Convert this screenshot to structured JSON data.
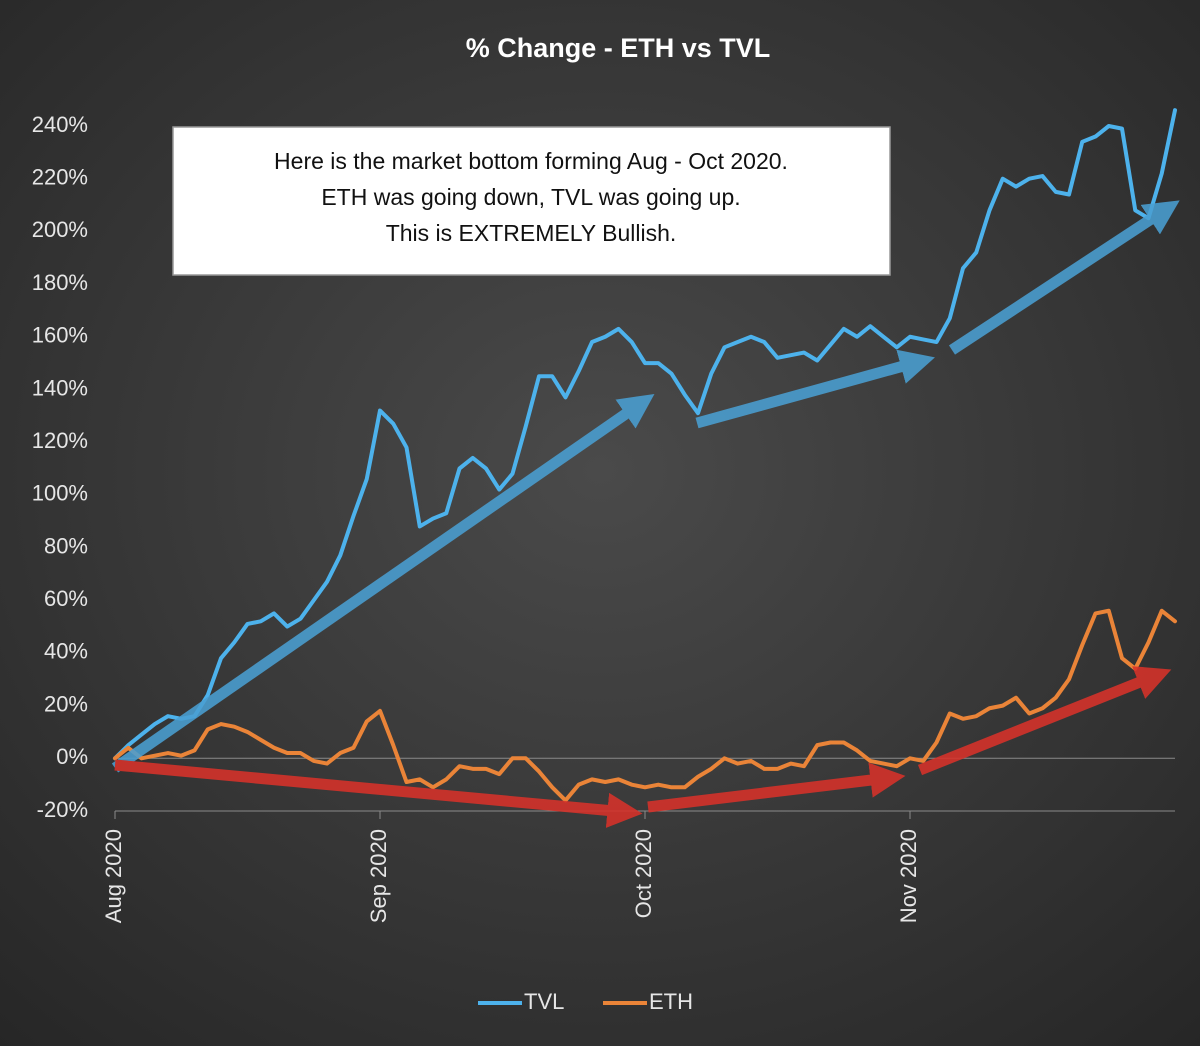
{
  "chart_data": {
    "type": "line",
    "title": "% Change - ETH vs TVL",
    "annotation": [
      "Here is the market bottom forming Aug - Oct 2020.",
      "ETH was going down, TVL was going up.",
      "This is EXTREMELY Bullish."
    ],
    "categories": [
      "Aug 2020",
      null,
      null,
      null,
      null,
      null,
      null,
      null,
      null,
      null,
      null,
      null,
      null,
      null,
      null,
      null,
      null,
      null,
      null,
      null,
      "Sep 2020",
      null,
      null,
      null,
      null,
      null,
      null,
      null,
      null,
      null,
      null,
      null,
      null,
      null,
      null,
      null,
      null,
      null,
      null,
      null,
      "Oct 2020",
      null,
      null,
      null,
      null,
      null,
      null,
      null,
      null,
      null,
      null,
      null,
      null,
      null,
      null,
      null,
      null,
      null,
      null,
      null,
      "Nov 2020",
      null,
      null,
      null,
      null,
      null,
      null,
      null,
      null,
      null,
      null,
      null,
      null,
      null,
      null,
      null,
      null,
      null,
      null,
      null,
      null
    ],
    "series": [
      {
        "name": "TVL",
        "color": "#4db2ec",
        "values": [
          0,
          5,
          9,
          13,
          16,
          15,
          16,
          24,
          38,
          44,
          51,
          52,
          55,
          50,
          53,
          60,
          67,
          77,
          92,
          106,
          132,
          127,
          118,
          88,
          91,
          93,
          110,
          114,
          110,
          102,
          108,
          126,
          145,
          145,
          137,
          147,
          158,
          160,
          163,
          158,
          150,
          150,
          146,
          138,
          131,
          146,
          156,
          158,
          160,
          158,
          152,
          153,
          154,
          151,
          157,
          163,
          160,
          164,
          160,
          156,
          160,
          159,
          158,
          167,
          186,
          192,
          208,
          220,
          217,
          220,
          221,
          215,
          214,
          234,
          236,
          240,
          239,
          208,
          205,
          222,
          246
        ]
      },
      {
        "name": "ETH",
        "color": "#ea8438",
        "values": [
          0,
          4,
          0,
          1,
          2,
          1,
          3,
          11,
          13,
          12,
          10,
          7,
          4,
          2,
          2,
          -1,
          -2,
          2,
          4,
          14,
          18,
          5,
          -9,
          -8,
          -11,
          -8,
          -3,
          -4,
          -4,
          -6,
          0,
          0,
          -5,
          -11,
          -16,
          -10,
          -8,
          -9,
          -8,
          -10,
          -11,
          -10,
          -11,
          -11,
          -7,
          -4,
          0,
          -2,
          -1,
          -4,
          -4,
          -2,
          -3,
          5,
          6,
          6,
          3,
          -1,
          -2,
          -3,
          0,
          -1,
          6,
          17,
          15,
          16,
          19,
          20,
          23,
          17,
          19,
          23,
          30,
          43,
          55,
          56,
          38,
          34,
          44,
          56,
          52
        ]
      }
    ],
    "ylim": [
      -20,
      240
    ],
    "yticks": [
      {
        "value": -20,
        "label": "-20%"
      },
      {
        "value": 0,
        "label": "0%"
      },
      {
        "value": 20,
        "label": "20%"
      },
      {
        "value": 40,
        "label": "40%"
      },
      {
        "value": 60,
        "label": "60%"
      },
      {
        "value": 80,
        "label": "80%"
      },
      {
        "value": 100,
        "label": "100%"
      },
      {
        "value": 120,
        "label": "120%"
      },
      {
        "value": 140,
        "label": "140%"
      },
      {
        "value": 160,
        "label": "160%"
      },
      {
        "value": 180,
        "label": "180%"
      },
      {
        "value": 200,
        "label": "200%"
      },
      {
        "value": 220,
        "label": "220%"
      },
      {
        "value": 240,
        "label": "240%"
      }
    ],
    "grid": false,
    "legend": "bottom"
  }
}
